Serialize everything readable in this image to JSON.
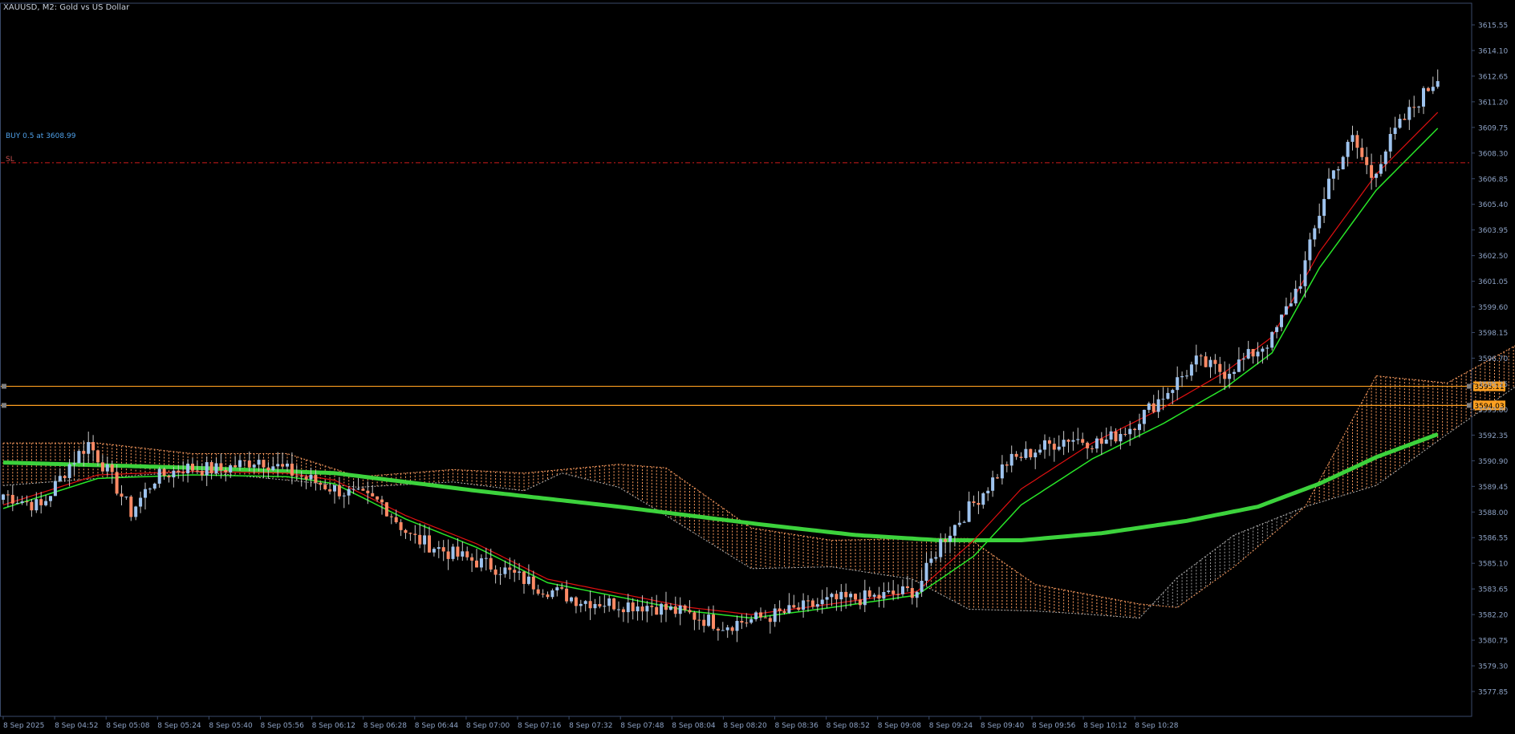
{
  "header": {
    "symbol_label": "XAUUSD, M2:  Gold vs US Dollar"
  },
  "annotations": {
    "buy_label": "BUY 0.5 at 3608.99",
    "sl_label": "SL"
  },
  "colors": {
    "background": "#000000",
    "frame": "#3a4a6a",
    "axis_text": "#8ea3c6",
    "bull_candle": "#9ec3ee",
    "bear_candle": "#ff8a65",
    "wick": "#c8c8c8",
    "sma_thick": "#3cd23c",
    "sma_green": "#28e628",
    "sma_red": "#e01010",
    "cloud_bull": "#9a9a9a",
    "cloud_bear": "#ff9e60",
    "level_line": "#ffa020",
    "sl_line": "#d01a1a",
    "buy_text": "#4fa0e8",
    "sl_text": "#c85050"
  },
  "chart_data": {
    "type": "candlestick",
    "title": "XAUUSD, M2:  Gold vs US Dollar",
    "symbol": "XAUUSD",
    "timeframe": "M2",
    "ylim": [
      3576.5,
      3616.2
    ],
    "price_axis_ticks": [
      "3615.55",
      "3614.10",
      "3612.65",
      "3611.20",
      "3609.75",
      "3608.30",
      "3606.85",
      "3605.40",
      "3603.95",
      "3602.50",
      "3601.05",
      "3599.60",
      "3598.15",
      "3596.70",
      "3595.25",
      "3593.80",
      "3592.35",
      "3590.90",
      "3589.45",
      "3588.00",
      "3586.55",
      "3585.10",
      "3583.65",
      "3582.20",
      "3580.75",
      "3579.30",
      "3577.85"
    ],
    "time_axis_labels": [
      "8 Sep 2025",
      "8 Sep 04:52",
      "8 Sep 05:08",
      "8 Sep 05:24",
      "8 Sep 05:40",
      "8 Sep 05:56",
      "8 Sep 06:12",
      "8 Sep 06:28",
      "8 Sep 06:44",
      "8 Sep 07:00",
      "8 Sep 07:16",
      "8 Sep 07:32",
      "8 Sep 07:48",
      "8 Sep 08:04",
      "8 Sep 08:20",
      "8 Sep 08:36",
      "8 Sep 08:52",
      "8 Sep 09:08",
      "8 Sep 09:24",
      "8 Sep 09:40",
      "8 Sep 09:56",
      "8 Sep 10:12",
      "8 Sep 10:28"
    ],
    "horizontal_levels": [
      {
        "price": 3595.11,
        "label": "3595.11"
      },
      {
        "price": 3594.03,
        "label": "3594.03"
      }
    ],
    "stop_loss_price": 3607.75,
    "price_keypoints": [
      [
        0,
        3589.0
      ],
      [
        8,
        3588.3
      ],
      [
        14,
        3590.7
      ],
      [
        18,
        3591.9
      ],
      [
        22,
        3590.3
      ],
      [
        27,
        3588.0
      ],
      [
        32,
        3589.9
      ],
      [
        38,
        3590.5
      ],
      [
        46,
        3590.4
      ],
      [
        54,
        3591.0
      ],
      [
        62,
        3590.1
      ],
      [
        70,
        3589.3
      ],
      [
        80,
        3588.5
      ],
      [
        86,
        3586.6
      ],
      [
        95,
        3585.6
      ],
      [
        105,
        3584.8
      ],
      [
        113,
        3583.8
      ],
      [
        122,
        3583.0
      ],
      [
        130,
        3582.8
      ],
      [
        137,
        3582.7
      ],
      [
        145,
        3582.2
      ],
      [
        152,
        3581.6
      ],
      [
        158,
        3581.9
      ],
      [
        165,
        3582.3
      ],
      [
        175,
        3583.0
      ],
      [
        185,
        3583.2
      ],
      [
        193,
        3583.6
      ],
      [
        198,
        3586.3
      ],
      [
        205,
        3588.5
      ],
      [
        212,
        3590.8
      ],
      [
        218,
        3591.5
      ],
      [
        225,
        3592.2
      ],
      [
        232,
        3591.9
      ],
      [
        238,
        3592.8
      ],
      [
        245,
        3594.6
      ],
      [
        252,
        3596.5
      ],
      [
        258,
        3595.9
      ],
      [
        262,
        3596.6
      ],
      [
        268,
        3597.8
      ],
      [
        274,
        3601.1
      ],
      [
        280,
        3606.8
      ],
      [
        285,
        3609.1
      ],
      [
        289,
        3607.0
      ],
      [
        294,
        3609.5
      ],
      [
        299,
        3611.3
      ],
      [
        303,
        3612.6
      ]
    ],
    "sma_fast_keypoints": [
      [
        0,
        3588.2
      ],
      [
        20,
        3589.9
      ],
      [
        40,
        3590.1
      ],
      [
        60,
        3590.0
      ],
      [
        70,
        3589.6
      ],
      [
        85,
        3587.6
      ],
      [
        100,
        3586.0
      ],
      [
        115,
        3584.0
      ],
      [
        130,
        3583.2
      ],
      [
        145,
        3582.4
      ],
      [
        158,
        3582.0
      ],
      [
        175,
        3582.6
      ],
      [
        193,
        3583.3
      ],
      [
        205,
        3585.5
      ],
      [
        215,
        3588.4
      ],
      [
        230,
        3591.0
      ],
      [
        245,
        3593.0
      ],
      [
        258,
        3595.0
      ],
      [
        268,
        3597.0
      ],
      [
        278,
        3601.8
      ],
      [
        290,
        3606.2
      ],
      [
        303,
        3609.7
      ]
    ],
    "sma_slow_keypoints": [
      [
        0,
        3590.8
      ],
      [
        40,
        3590.5
      ],
      [
        70,
        3590.2
      ],
      [
        100,
        3589.2
      ],
      [
        130,
        3588.3
      ],
      [
        160,
        3587.3
      ],
      [
        180,
        3586.7
      ],
      [
        198,
        3586.4
      ],
      [
        215,
        3586.4
      ],
      [
        232,
        3586.8
      ],
      [
        250,
        3587.5
      ],
      [
        265,
        3588.3
      ],
      [
        278,
        3589.6
      ],
      [
        290,
        3591.1
      ],
      [
        303,
        3592.4
      ]
    ],
    "cloud_keypoints": [
      [
        0,
        3589.5,
        3591.9
      ],
      [
        20,
        3589.9,
        3591.9
      ],
      [
        40,
        3590.3,
        3591.3
      ],
      [
        60,
        3589.8,
        3591.3
      ],
      [
        75,
        3589.4,
        3590.0
      ],
      [
        95,
        3589.7,
        3590.4
      ],
      [
        110,
        3589.2,
        3590.2
      ],
      [
        118,
        3590.2,
        3590.4
      ],
      [
        130,
        3589.4,
        3590.7
      ],
      [
        140,
        3587.8,
        3590.5
      ],
      [
        158,
        3584.8,
        3587.1
      ],
      [
        175,
        3584.9,
        3586.4
      ],
      [
        192,
        3584.2,
        3586.5
      ],
      [
        204,
        3582.5,
        3586.5
      ],
      [
        218,
        3582.4,
        3583.9
      ],
      [
        230,
        3582.2,
        3583.3
      ],
      [
        240,
        3582.0,
        3582.8
      ],
      [
        248,
        3584.3,
        3582.6
      ],
      [
        260,
        3586.7,
        3584.9
      ],
      [
        275,
        3588.3,
        3588.3
      ],
      [
        290,
        3589.5,
        3595.7
      ],
      [
        305,
        3592.4,
        3595.3
      ],
      [
        320,
        3595.2,
        3597.5
      ],
      [
        335,
        3600.2,
        3601.5
      ],
      [
        340,
        3602.2,
        3602.8
      ],
      [
        346,
        3605.1,
        3606.2
      ]
    ]
  }
}
